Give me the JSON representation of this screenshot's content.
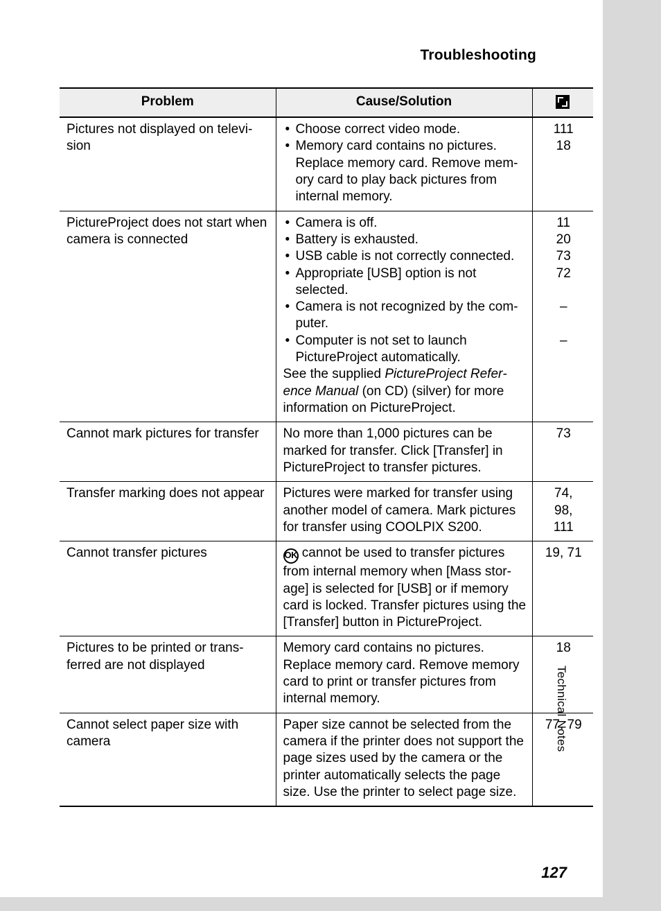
{
  "heading": "Troubleshooting",
  "side_label": "Technical Notes",
  "page_number": "127",
  "columns": {
    "problem": "Problem",
    "cause": "Cause/Solution"
  },
  "rows": [
    {
      "problem": "Pictures not displayed on televi­sion",
      "cause_items": [
        "Choose correct video mode.",
        "Memory card contains no pictures. Replace memory card. Remove mem­ory card to play back pictures from internal memory."
      ],
      "pages": "111\n18"
    },
    {
      "problem": "PictureProject does not start when camera is connected",
      "cause_items": [
        "Camera is off.",
        "Battery is exhausted.",
        "USB cable is not correctly connected.",
        "Appropriate [USB] option is not selected.",
        "Camera is not recognized by the com­puter.",
        "Computer is not set to launch PictureProject automatically."
      ],
      "cause_after_pre": "See the supplied ",
      "cause_after_italic": "PictureProject Refer­ence Manual",
      "cause_after_post": " (on CD) (silver) for more information on PictureProject.",
      "pages": "11\n20\n73\n72\n\n–\n\n–"
    },
    {
      "problem": "Cannot mark pictures for transfer",
      "cause_text": "No more than 1,000 pictures can be marked for transfer. Click [Transfer] in PictureProject to transfer pictures.",
      "pages": "73"
    },
    {
      "problem": "Transfer marking does not appear",
      "cause_text": "Pictures were marked for transfer using another model of camera. Mark pictures for transfer using COOLPIX S200.",
      "pages": "74,\n98,\n111"
    },
    {
      "problem": "Cannot transfer pictures",
      "ok_icon": true,
      "cause_text": " cannot be used to transfer pictures from internal memory when [Mass stor­age] is selected for [USB] or if memory card is locked. Transfer pictures using the [Transfer] button in PictureProject.",
      "pages": "19, 71"
    },
    {
      "problem": "Pictures to be printed or trans­ferred are not displayed",
      "cause_text": "Memory card contains no pictures. Replace memory card. Remove memory card to print or transfer pictures from internal memory.",
      "pages": "18"
    },
    {
      "problem": "Cannot select paper size with camera",
      "cause_text": "Paper size cannot be selected from the camera if the printer does not support the page sizes used by the camera or the printer automatically selects the page size. Use the printer to select page size.",
      "pages": "77, 79"
    }
  ]
}
